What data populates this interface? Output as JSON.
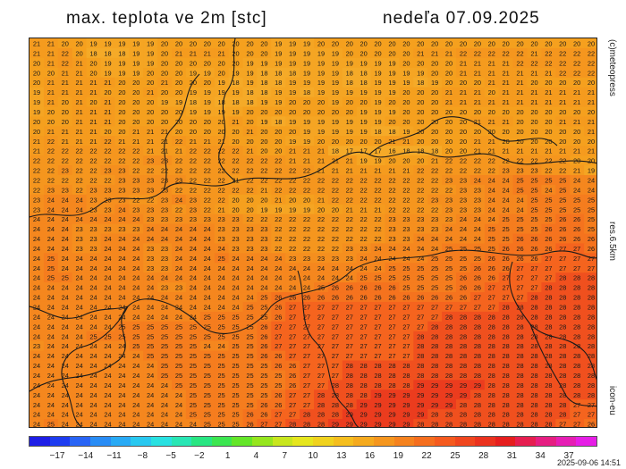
{
  "header": {
    "title": "max. teplota ve 2m [stc]",
    "date": "nedeľa 07.09.2025"
  },
  "side_labels": {
    "copyright": "(c)meteopress",
    "resolution": "res.6.5km",
    "model": "icon-eu"
  },
  "timestamp": "2025-09-06 14:51",
  "colorbar": {
    "labels": [
      "−17",
      "−14",
      "−11",
      "−8",
      "−5",
      "−2",
      "1",
      "4",
      "7",
      "10",
      "13",
      "16",
      "19",
      "22",
      "25",
      "28",
      "31",
      "34",
      "37"
    ],
    "colors": [
      "#1e1ee6",
      "#1e3cf0",
      "#2864f5",
      "#288cf5",
      "#28aaf5",
      "#28c8f0",
      "#28e1e1",
      "#28e6b4",
      "#28e682",
      "#3ce650",
      "#64e628",
      "#96e61e",
      "#c8e61e",
      "#e6e61e",
      "#f0d21e",
      "#f5be1e",
      "#f5aa1e",
      "#f5961e",
      "#f5821e",
      "#f56e1e",
      "#f55a1e",
      "#f0461e",
      "#eb321e",
      "#e61e1e",
      "#e61e50",
      "#e61e82",
      "#e61eb4",
      "#e61ee6"
    ],
    "min": -18,
    "max": 38
  },
  "map_grid": {
    "cols": 40,
    "rows": 40,
    "rows_values": [
      "21 21 20 20 19 19 19 19 19 20 20 20 20 20 20 20 20 19 19 19 20 20 20 20 20 20 20 20 20 20 20 20 20 20 20 20 20 20 20 20",
      "21 21 22 20 18 18 18 19 19 20 21 21 21 21 20 20 20 19 19 19 19 19 20 20 20 20 20 21 21 21 22 22 22 22 22 21 22 22 22 22",
      "20 21 22 21 20 19 19 19 19 20 20 20 20 20 20 19 19 19 19 19 19 19 19 19 19 19 20 20 20 20 21 21 21 21 22 22 22 22 22 22",
      "20 20 21 21 20 19 19 19 20 20 20 19 19 20 19 19 18 18 18 19 19 19 18 18 19 19 19 19 20 20 21 21 21 21 21 21 21 22 22 22",
      "20 21 21 21 21 21 20 20 20 21 20 20 20 19 18 19 18 18 19 19 19 19 18 18 19 19 19 18 19 20 20 20 21 21 21 20 20 20 20 20",
      "19 21 21 21 21 20 20 20 21 20 20 19 19 19 19 18 18 19 19 18 19 19 19 19 19 19 20 20 20 21 21 21 20 21 21 21 21 21 21 21",
      "19 21 20 21 20 21 20 20 20 19 19 18 19 18 18 18 19 19 20 20 20 19 20 20 19 20 20 20 20 21 21 21 21 21 21 21 21 21 21 21",
      "19 20 20 21 21 21 20 20 20 20 20 19 19 19 19 20 20 20 20 20 20 20 20 19 19 19 20 20 20 20 20 20 20 20 20 20 20 20 20 20",
      "20 20 20 21 21 21 20 20 20 20 20 20 20 20 21 20 19 18 19 19 19 19 19 19 19 20 20 20 20 20 20 21 21 21 20 20 20 21 21 21",
      "20 21 21 21 21 20 20 21 21 21 20 20 20 20 20 21 20 20 20 19 19 19 19 19 18 18 19 20 20 20 20 20 20 20 20 20 20 20 20 21",
      "21 22 21 21 21 22 21 21 21 21 22 21 21 21 20 20 20 20 19 19 20 20 20 20 20 21 21 20 20 20 20 21 21 20 20 20 20 20 20 20",
      "21 22 22 22 22 22 22 22 21 21 21 22 22 22 22 21 20 20 21 21 21 18 17 17 17 16 18 18 18 20 20 21 21 21 21 21 21 21 21 21",
      "22 22 22 22 22 22 22 22 23 23 22 22 22 22 22 22 22 22 21 21 21 21 21 19 19 20 20 20 21 22 22 22 22 22 22 22 22 22 20 20",
      "22 22 23 22 22 23 23 22 22 22 22 22 22 22 22 22 22 22 22 22 21 21 21 21 21 21 21 22 22 22 22 22 22 23 23 23 22 22 21 19",
      "22 22 22 22 22 22 23 23 23 23 23 22 22 22 21 22 22 22 22 22 22 22 22 22 22 22 22 22 22 23 23 24 24 24 25 25 25 25 24 24",
      "22 23 23 22 23 23 23 23 23 23 22 22 22 22 22 22 21 22 22 22 22 22 22 22 22 22 22 22 22 22 23 23 24 24 25 25 24 25 24 24",
      "23 24 24 24 23 23 23 22 22 23 24 23 22 22 20 20 20 21 20 20 21 22 22 22 22 22 22 22 23 23 23 23 24 24 24 25 25 25 25 25",
      "23 24 24 24 23 23 24 23 23 23 22 23 22 21 20 20 19 19 19 19 20 20 21 21 21 22 22 22 22 23 23 23 24 24 24 25 25 25 25 25",
      "24 24 24 24 24 24 24 24 23 23 23 23 23 23 23 22 22 22 22 22 22 22 22 22 22 23 23 23 23 23 24 24 24 25 25 25 25 26 26 25",
      "24 24 24 23 23 23 23 23 24 24 24 24 24 23 23 23 23 22 22 22 22 22 22 22 22 23 23 23 23 24 24 24 25 25 25 25 26 26 26 25",
      "24 24 24 23 23 24 24 24 24 24 24 24 24 23 23 23 23 22 22 22 22 22 22 22 22 23 23 24 24 24 24 24 25 25 26 26 26 26 26 26",
      "24 24 24 23 23 24 24 24 23 23 24 24 24 24 23 23 23 22 22 22 22 22 23 23 24 24 24 24 24 25 25 25 25 26 26 26 26 27 27 26",
      "24 25 24 24 24 24 24 24 23 23 24 24 24 25 24 24 24 24 23 23 23 23 23 24 24 24 24 24 25 25 25 25 26 26 26 26 27 27 27 27",
      "24 25 24 24 24 24 24 24 23 23 24 24 24 24 24 24 24 24 24 24 24 24 24 24 24 25 25 25 25 25 25 26 26 26 27 27 27 27 27 27",
      "24 25 25 24 24 24 24 24 24 24 24 24 24 24 24 24 24 24 24 24 24 24 24 25 25 25 25 25 25 25 26 26 26 27 27 27 27 28 28 28",
      "24 24 24 24 24 24 24 24 24 23 23 24 24 24 24 24 24 24 24 24 25 26 26 26 26 26 25 25 25 25 26 26 27 27 27 27 28 28 28 28",
      "24 24 24 24 24 24 24 24 24 24 24 24 24 24 24 24 25 26 26 26 26 26 26 26 26 26 26 26 26 26 26 27 27 27 27 28 28 28 28 28",
      "24 24 24 24 24 24 24 24 24 24 24 24 24 24 24 25 25 26 27 27 27 27 27 27 27 27 27 27 27 27 27 27 27 28 28 28 28 28 28 28",
      "24 24 24 24 24 24 24 24 24 24 24 24 25 25 25 25 25 26 27 27 27 27 27 27 27 27 27 27 27 28 28 28 28 28 28 28 28 28 28 28",
      "24 24 24 24 24 24 25 25 25 25 25 25 25 25 25 25 26 27 27 27 27 27 27 27 27 27 27 27 28 28 28 28 28 28 28 28 28 28 28 28",
      "24 24 24 24 25 25 25 25 25 25 25 25 25 25 25 25 26 27 27 27 27 27 27 27 27 27 27 28 28 28 28 28 28 28 28 28 28 28 28 28",
      "23 24 24 24 24 24 24 25 25 25 25 25 24 24 25 25 26 27 27 27 27 27 27 27 27 27 27 28 28 28 28 28 28 28 28 28 28 28 28 28",
      "24 24 24 24 24 24 24 24 25 25 25 25 25 25 25 25 26 26 27 27 27 27 27 27 27 27 27 28 28 28 28 28 28 28 28 28 28 28 28 28",
      "24 24 24 24 24 24 24 24 24 25 25 25 25 25 25 25 25 26 26 27 27 27 28 28 28 28 28 28 28 28 28 28 28 28 28 28 28 28 28 28",
      "24 24 24 24 24 24 24 24 24 25 25 25 25 25 25 25 25 25 26 27 27 27 28 28 28 28 28 28 28 28 28 28 28 28 28 28 28 28 28 28",
      "24 24 24 24 24 24 24 24 24 24 25 25 25 25 25 25 25 25 26 27 27 28 28 28 28 28 28 29 29 29 29 29 28 28 28 28 28 28 28 28",
      "24 24 24 24 24 24 24 24 24 24 24 25 25 25 25 25 25 26 27 27 28 28 28 28 29 29 29 29 29 29 29 28 28 28 28 28 28 28 28 28",
      "24 24 24 24 24 24 24 24 24 24 24 25 25 25 25 25 26 26 27 27 28 28 28 29 29 29 29 29 29 29 28 28 28 28 28 28 28 28 27 27",
      "24 24 24 24 24 24 24 24 24 24 24 25 25 25 25 26 26 27 27 28 28 28 29 29 29 29 29 29 28 28 28 28 28 28 28 28 28 28 27 27",
      "24 25 24 24 24 24 24 24 24 24 24 24 25 25 25 26 27 27 28 28 28 29 29 29 29 29 29 28 28 28 28 28 28 28 28 28 28 27 27 26"
    ]
  }
}
